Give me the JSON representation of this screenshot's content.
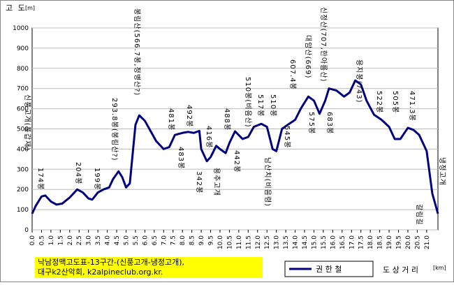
{
  "chart_data": {
    "type": "line",
    "y_label": "고 도",
    "y_unit": "[m]",
    "x_label": "도 상 거 리",
    "x_unit": "[km]",
    "note": [
      "낙남정맥고도표-13구간-(신풍고개-냉정고개),",
      "대구k2산악회, k2alpineclub.org.kr."
    ],
    "xlim": [
      0,
      21.6
    ],
    "ylim": [
      0,
      1000
    ],
    "yticks": [
      0,
      100,
      200,
      300,
      400,
      500,
      600,
      700,
      800,
      900,
      1000
    ],
    "xticks": [
      {
        "value": 0,
        "label": "0.0"
      },
      {
        "value": 0.5,
        "label": "0.5"
      },
      {
        "value": 1,
        "label": "1.0"
      },
      {
        "value": 1.5,
        "label": "1.5"
      },
      {
        "value": 2,
        "label": "2.0"
      },
      {
        "value": 2.5,
        "label": "2.5"
      },
      {
        "value": 3,
        "label": "3.0"
      },
      {
        "value": 3.5,
        "label": "3.5"
      },
      {
        "value": 4,
        "label": "4.0"
      },
      {
        "value": 4.5,
        "label": "4.5"
      },
      {
        "value": 5,
        "label": "5.0"
      },
      {
        "value": 5.5,
        "label": "5.5"
      },
      {
        "value": 6,
        "label": "6.0"
      },
      {
        "value": 6.5,
        "label": "6.5"
      },
      {
        "value": 7,
        "label": "7.0"
      },
      {
        "value": 7.5,
        "label": "7.5"
      },
      {
        "value": 8,
        "label": "8.0"
      },
      {
        "value": 8.5,
        "label": "8.5"
      },
      {
        "value": 9,
        "label": "9.0"
      },
      {
        "value": 9.5,
        "label": "9.5"
      },
      {
        "value": 10,
        "label": "10.0"
      },
      {
        "value": 10.5,
        "label": "10.5"
      },
      {
        "value": 11,
        "label": "11.0"
      },
      {
        "value": 11.5,
        "label": "11.5"
      },
      {
        "value": 12,
        "label": "12.0"
      },
      {
        "value": 12.5,
        "label": "12.5"
      },
      {
        "value": 13,
        "label": "13.0"
      },
      {
        "value": 13.5,
        "label": "13.5"
      },
      {
        "value": 14,
        "label": "14.0"
      },
      {
        "value": 14.5,
        "label": "14.5"
      },
      {
        "value": 15,
        "label": "15.0"
      },
      {
        "value": 15.5,
        "label": "15.5"
      },
      {
        "value": 16,
        "label": "16.0"
      },
      {
        "value": 16.5,
        "label": "16.5"
      },
      {
        "value": 17,
        "label": "17.0"
      },
      {
        "value": 17.5,
        "label": "17.5"
      },
      {
        "value": 18,
        "label": "18.0"
      },
      {
        "value": 18.5,
        "label": "18.5"
      },
      {
        "value": 19,
        "label": "19.0"
      },
      {
        "value": 19.5,
        "label": "19.5"
      },
      {
        "value": 20,
        "label": "20.0"
      },
      {
        "value": 20.5,
        "label": "20.5"
      },
      {
        "value": 21,
        "label": "21.0"
      }
    ],
    "grid": true,
    "x": [
      0,
      0.2,
      0.5,
      0.7,
      1,
      1.3,
      1.6,
      2,
      2.4,
      2.7,
      3,
      3.2,
      3.5,
      3.8,
      4.1,
      4.3,
      4.6,
      4.8,
      5,
      5.2,
      5.5,
      5.7,
      6,
      6.3,
      6.6,
      7,
      7.3,
      7.6,
      8,
      8.3,
      8.6,
      8.9,
      9,
      9.3,
      9.5,
      9.8,
      10,
      10.3,
      10.5,
      10.8,
      11.2,
      11.5,
      11.8,
      12.2,
      12.5,
      12.8,
      13,
      13.3,
      13.6,
      14,
      14.3,
      14.7,
      15,
      15.3,
      15.6,
      15.8,
      16.2,
      16.6,
      16.9,
      17.2,
      17.5,
      17.8,
      18.2,
      18.6,
      19,
      19.3,
      19.6,
      20,
      20.3,
      20.6,
      21,
      21.3,
      21.6
    ],
    "series": [
      {
        "name": "권 한 철",
        "color": "#000080",
        "values": [
          80,
          120,
          165,
          170,
          140,
          125,
          130,
          160,
          200,
          185,
          155,
          150,
          185,
          200,
          210,
          250,
          290,
          260,
          210,
          230,
          520,
          567,
          540,
          490,
          440,
          400,
          410,
          470,
          480,
          485,
          480,
          490,
          400,
          340,
          360,
          416,
          400,
          380,
          430,
          488,
          450,
          460,
          510,
          525,
          510,
          400,
          390,
          500,
          520,
          545,
          600,
          660,
          640,
          575,
          640,
          700,
          690,
          660,
          680,
          740,
          720,
          640,
          570,
          545,
          510,
          450,
          450,
          505,
          495,
          470,
          390,
          180,
          80
        ]
      }
    ],
    "annotations": [
      "신풍고개(풍갑재)",
      "174봉",
      "204봉",
      "199봉",
      "293.8봉(봉림산?)",
      "봉림산(566.7봉,정병산?)",
      "481봉",
      "483봉",
      "492봉",
      "342봉",
      "416봉",
      "용추고개",
      "488봉",
      "442봉",
      "510봉(비음산)",
      "517봉",
      "남산치(비음령)",
      "510봉",
      "545봉",
      "607.4봉",
      "대암산(669)",
      "575봉",
      "신정산(707,한아름산)",
      "683봉",
      "용지봉(743)",
      "522봉",
      "505봉",
      "471.3봉",
      "냉정고개",
      "갈림길"
    ]
  }
}
